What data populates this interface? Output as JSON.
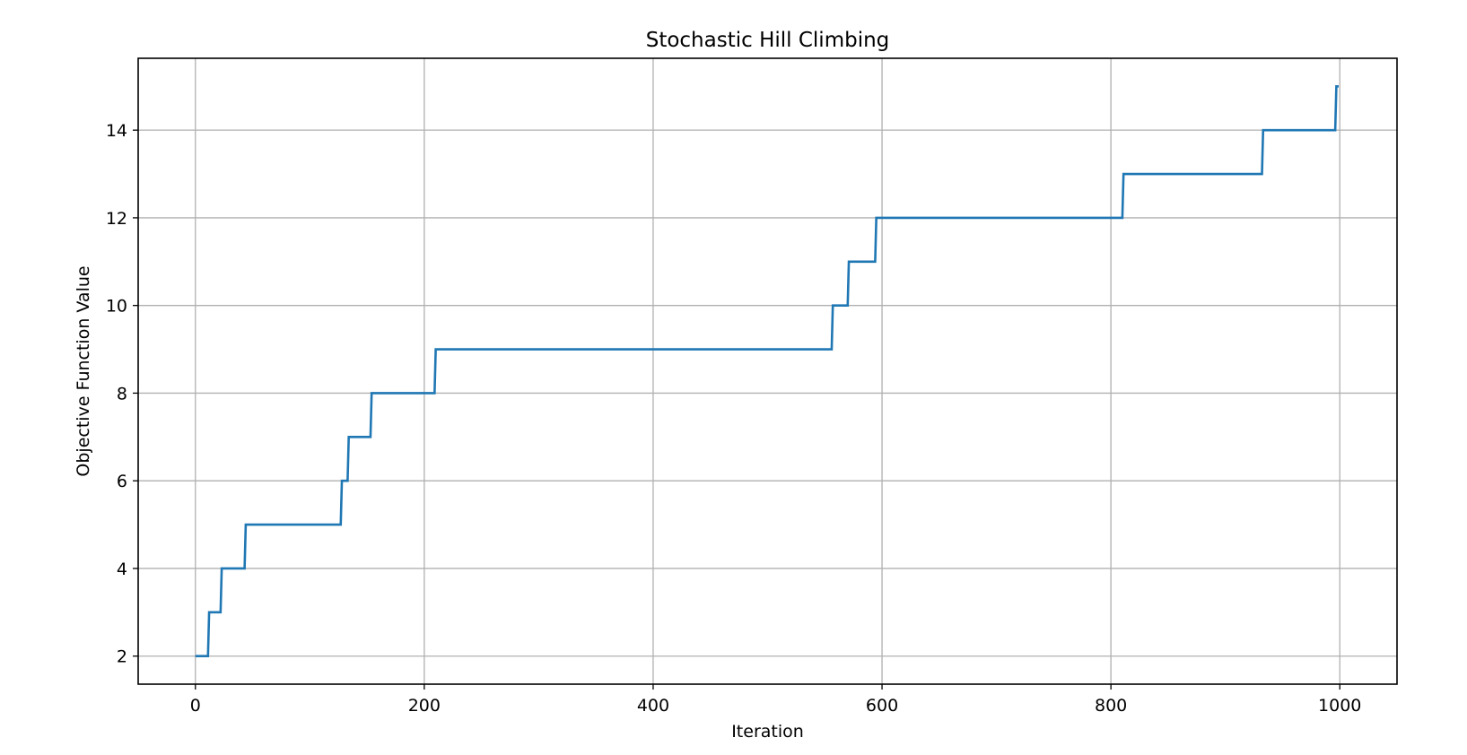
{
  "chart_data": {
    "type": "line",
    "title": "Stochastic Hill Climbing",
    "xlabel": "Iteration",
    "ylabel": "Objective Function Value",
    "xlim": [
      -50,
      1050
    ],
    "ylim": [
      1.36,
      15.64
    ],
    "xticks": [
      0,
      200,
      400,
      600,
      800,
      1000
    ],
    "yticks": [
      2,
      4,
      6,
      8,
      10,
      12,
      14
    ],
    "grid": true,
    "line_color": "#1f77b4",
    "grid_color": "#b0b0b0",
    "series": [
      {
        "steps": [
          {
            "x": 0,
            "y": 2
          },
          {
            "x": 12,
            "y": 3
          },
          {
            "x": 23,
            "y": 4
          },
          {
            "x": 44,
            "y": 5
          },
          {
            "x": 128,
            "y": 6
          },
          {
            "x": 134,
            "y": 7
          },
          {
            "x": 154,
            "y": 8
          },
          {
            "x": 210,
            "y": 9
          },
          {
            "x": 557,
            "y": 10
          },
          {
            "x": 571,
            "y": 11
          },
          {
            "x": 595,
            "y": 12
          },
          {
            "x": 811,
            "y": 13
          },
          {
            "x": 933,
            "y": 14
          },
          {
            "x": 997,
            "y": 15
          },
          {
            "x": 999,
            "y": 15
          }
        ]
      }
    ]
  }
}
